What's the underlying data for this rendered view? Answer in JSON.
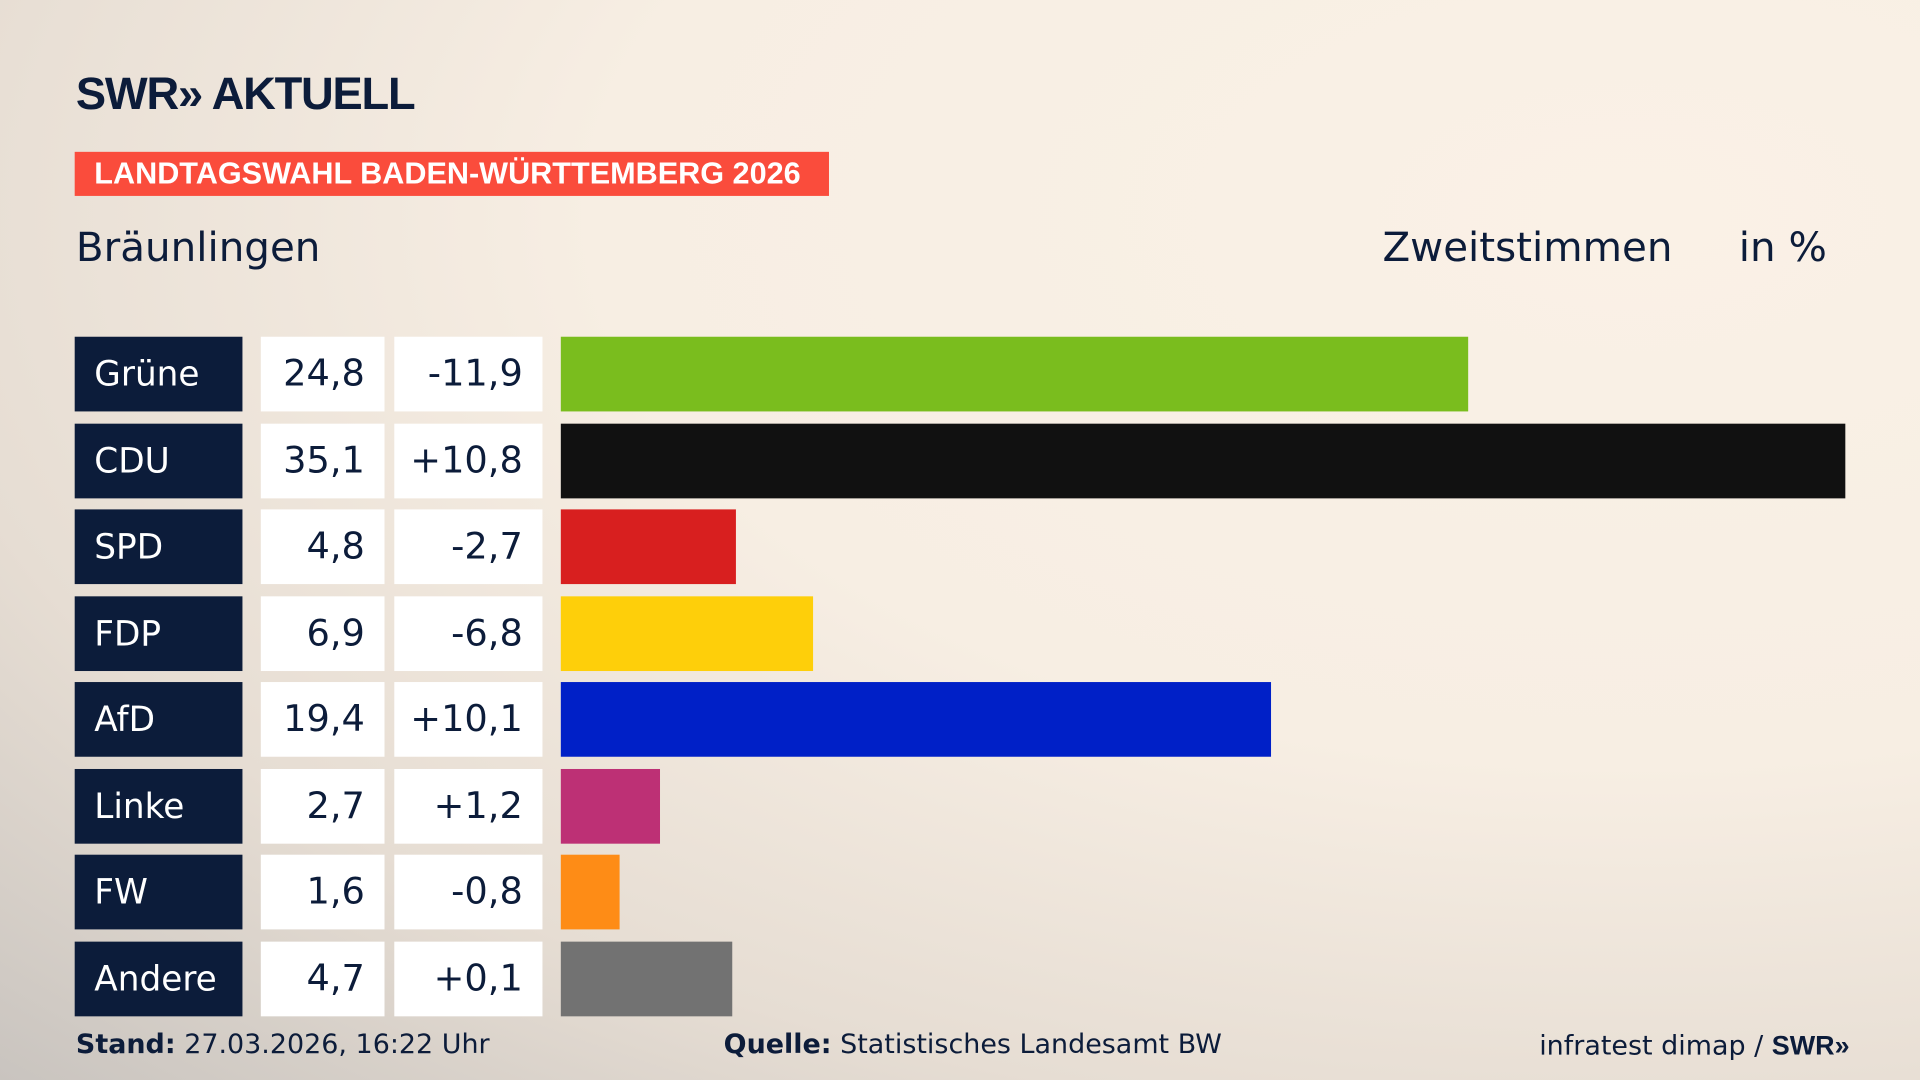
{
  "header": {
    "logo": "SWR» AKTUELL",
    "banner": "LANDTAGSWAHL BADEN-WÜRTTEMBERG 2026",
    "place": "Bräunlingen",
    "metric": "Zweitstimmen",
    "unit": "in %"
  },
  "chart_data": {
    "type": "bar",
    "orientation": "horizontal",
    "xlim": [
      0,
      35.1
    ],
    "grid": false,
    "categories": [
      "Grüne",
      "CDU",
      "SPD",
      "FDP",
      "AfD",
      "Linke",
      "FW",
      "Andere"
    ],
    "values": [
      24.8,
      35.1,
      4.8,
      6.9,
      19.4,
      2.7,
      1.6,
      4.7
    ],
    "values_label": [
      "24,8",
      "35,1",
      "4,8",
      "6,9",
      "19,4",
      "2,7",
      "1,6",
      "4,7"
    ],
    "diffs": [
      "-11,9",
      "+10,8",
      "-2,7",
      "-6,8",
      "+10,1",
      "+1,2",
      "-0,8",
      "+0,1"
    ],
    "colors": [
      "#7abd1e",
      "#111111",
      "#d81f1f",
      "#fecf0a",
      "#0020c7",
      "#bd3075",
      "#fe8c16",
      "#727272"
    ]
  },
  "footer": {
    "stand_label": "Stand:",
    "stand": "27.03.2026, 16:22 Uhr",
    "source_label": "Quelle:",
    "source": "Statistisches Landesamt BW",
    "credit": "infratest dimap / ",
    "credit_logo": "SWR»"
  }
}
